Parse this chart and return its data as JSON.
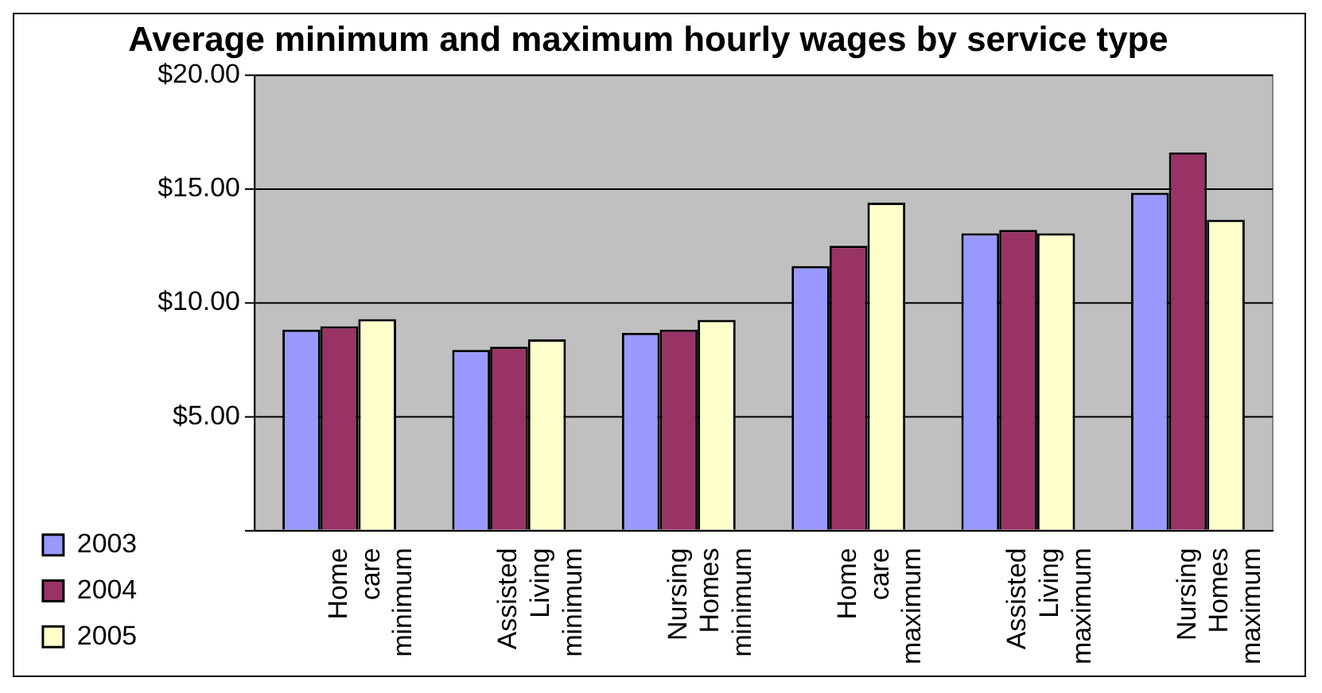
{
  "chart_data": {
    "type": "bar",
    "title": "Average minimum and maximum hourly wages by service type",
    "categories": [
      "Home care minimum",
      "Assisted Living minimum",
      "Nursing Homes minimum",
      "Home care maximum",
      "Assisted Living maximum",
      "Nursing Homes maximum"
    ],
    "series": [
      {
        "name": "2003",
        "color": "#9999ff",
        "values": [
          8.82,
          7.93,
          8.68,
          11.61,
          13.05,
          14.83
        ]
      },
      {
        "name": "2004",
        "color": "#993366",
        "values": [
          8.97,
          8.07,
          8.82,
          12.5,
          13.2,
          16.6
        ]
      },
      {
        "name": "2005",
        "color": "#ffffcc",
        "values": [
          9.28,
          8.39,
          9.25,
          14.4,
          13.05,
          13.65
        ]
      }
    ],
    "ylim": [
      0,
      20
    ],
    "yticks": [
      {
        "value": 0,
        "label": null
      },
      {
        "value": 5,
        "label": "$5.00"
      },
      {
        "value": 10,
        "label": "$10.00"
      },
      {
        "value": 15,
        "label": "$15.00"
      },
      {
        "value": 20,
        "label": "$20.00"
      }
    ],
    "grid": "y",
    "legend": "bottom left"
  }
}
